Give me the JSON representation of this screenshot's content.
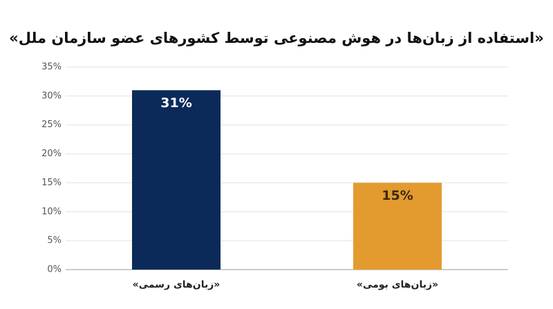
{
  "chart_data": {
    "type": "bar",
    "title": "«استفاده از زبان‌ها در هوش مصنوعی توسط کشورهای عضو سازمان ملل»",
    "categories": [
      "«زبان‌های رسمی»",
      "«زبان‌های بومی»"
    ],
    "values": [
      31,
      15
    ],
    "value_labels": [
      "31%",
      "15%"
    ],
    "colors": [
      "#0b2a5a",
      "#e39b2f"
    ],
    "ylim": [
      0,
      35
    ],
    "yticks": [
      {
        "value": 0,
        "label": "0%"
      },
      {
        "value": 5,
        "label": "5%"
      },
      {
        "value": 10,
        "label": "10%"
      },
      {
        "value": 15,
        "label": "15%"
      },
      {
        "value": 20,
        "label": "20%"
      },
      {
        "value": 25,
        "label": "25%"
      },
      {
        "value": 30,
        "label": "30%"
      },
      {
        "value": 35,
        "label": "35%"
      }
    ],
    "grid": true
  }
}
